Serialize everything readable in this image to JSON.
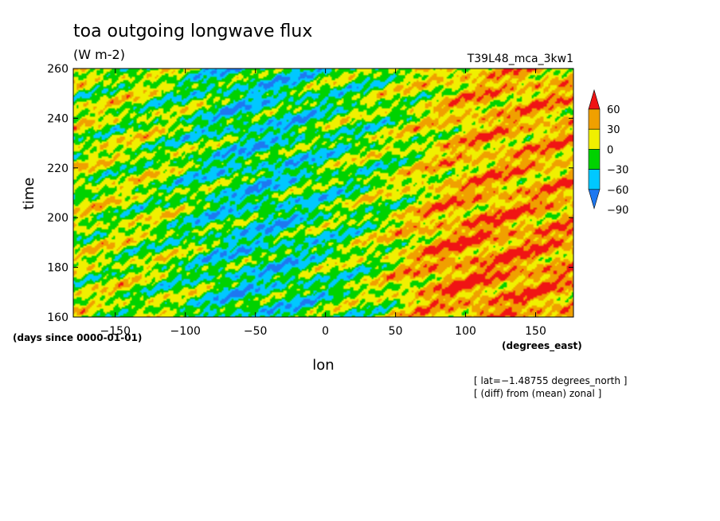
{
  "chart_data": {
    "type": "heatmap",
    "title": "toa outgoing longwave flux",
    "subtitle": "(W m-2)",
    "experiment": "T39L48_mca_3kw1",
    "xlabel": "lon",
    "xunits": "(degrees_east)",
    "ylabel": "time",
    "yunits": "(days since 0000-01-01)",
    "xlim": [
      -180,
      177
    ],
    "ylim": [
      160,
      260
    ],
    "xticks": [
      -150,
      -100,
      -50,
      0,
      50,
      100,
      150
    ],
    "yticks": [
      160,
      180,
      200,
      220,
      240,
      260
    ],
    "xtick_labels": [
      "−150",
      "−100",
      "−50",
      "0",
      "50",
      "100",
      "150"
    ],
    "ytick_labels": [
      "160",
      "180",
      "200",
      "220",
      "240",
      "260"
    ],
    "colorbar": {
      "levels": [
        -90,
        -60,
        -30,
        0,
        30,
        60
      ],
      "level_labels": [
        "−90",
        "−60",
        "−30",
        "0",
        "30",
        "60"
      ],
      "colors": [
        "#1e78f0",
        "#00c8ff",
        "#00d200",
        "#f0f000",
        "#f0a000",
        "#f01414"
      ],
      "extend": "both"
    },
    "annotations": [
      "[ lat=−1.48755 degrees_north ]",
      "[ (diff) from (mean) zonal ]"
    ],
    "field_description": "Time-longitude anomaly field: negative (blue) anomalies concentrated west of about 60E with eastward-tilted streaks; positive (orange/red) anomalies dominate east of about 60E, strongest near 80-120E between days 170-200.",
    "region_means": [
      {
        "lon_range": [
          -180,
          -100
        ],
        "time_range": [
          160,
          260
        ],
        "value": 5
      },
      {
        "lon_range": [
          -100,
          0
        ],
        "time_range": [
          160,
          260
        ],
        "value": -35
      },
      {
        "lon_range": [
          0,
          60
        ],
        "time_range": [
          160,
          260
        ],
        "value": -10
      },
      {
        "lon_range": [
          60,
          177
        ],
        "time_range": [
          160,
          260
        ],
        "value": 35
      },
      {
        "lon_range": [
          70,
          140
        ],
        "time_range": [
          170,
          200
        ],
        "value": 55
      }
    ]
  }
}
